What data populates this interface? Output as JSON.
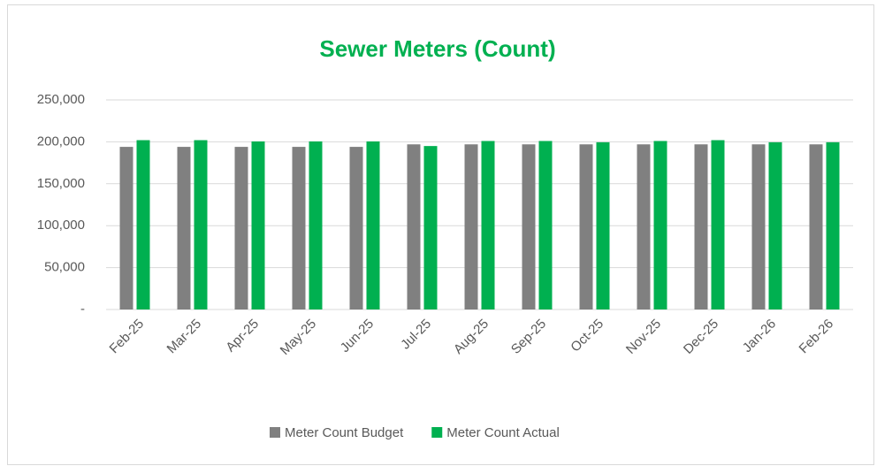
{
  "chart_data": {
    "type": "bar",
    "title": "Sewer Meters (Count)",
    "categories": [
      "Feb-25",
      "Mar-25",
      "Apr-25",
      "May-25",
      "Jun-25",
      "Jul-25",
      "Aug-25",
      "Sep-25",
      "Oct-25",
      "Nov-25",
      "Dec-25",
      "Jan-26",
      "Feb-26"
    ],
    "series": [
      {
        "name": "Meter Count Budget",
        "color": "#808080",
        "values": [
          194000,
          194000,
          194000,
          194000,
          194000,
          197000,
          197000,
          197000,
          197000,
          197000,
          197000,
          197000,
          197000
        ]
      },
      {
        "name": "Meter Count Actual",
        "color": "#00b050",
        "values": [
          202000,
          202000,
          200500,
          200500,
          200500,
          195000,
          201000,
          201000,
          199500,
          201000,
          202000,
          199500,
          199500
        ]
      }
    ],
    "ylim": [
      0,
      250000
    ],
    "yticks": [
      {
        "value": 0,
        "label": "-"
      },
      {
        "value": 50000,
        "label": "50,000"
      },
      {
        "value": 100000,
        "label": "100,000"
      },
      {
        "value": 150000,
        "label": "150,000"
      },
      {
        "value": 200000,
        "label": "200,000"
      },
      {
        "value": 250000,
        "label": "250,000"
      }
    ],
    "grid": true,
    "legend": "bottom"
  }
}
